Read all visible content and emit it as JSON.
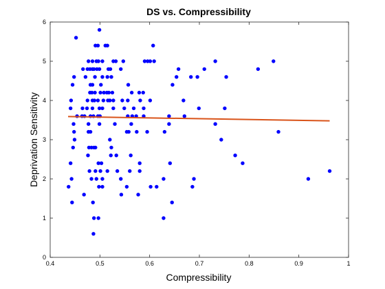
{
  "chart_data": {
    "type": "scatter",
    "title": "DS vs. Compressibility",
    "xlabel": "Compressibility",
    "ylabel": "Deprivation Sensitivity",
    "xlim": [
      0.4,
      1.0
    ],
    "ylim": [
      0,
      6
    ],
    "xticks": [
      "0.4",
      "0.5",
      "0.6",
      "0.7",
      "0.8",
      "0.9",
      "1"
    ],
    "yticks": [
      "0",
      "1",
      "2",
      "3",
      "4",
      "5",
      "6"
    ],
    "grid": false,
    "legend": "none",
    "point_color": "#0000ff",
    "line_color": "#d95319",
    "fit_line": {
      "x": [
        0.436,
        0.962
      ],
      "y": [
        3.59,
        3.48
      ]
    },
    "points": [
      [
        0.452,
        5.6
      ],
      [
        0.499,
        5.8
      ],
      [
        0.491,
        5.4
      ],
      [
        0.496,
        5.4
      ],
      [
        0.511,
        5.4
      ],
      [
        0.515,
        5.4
      ],
      [
        0.607,
        5.4
      ],
      [
        0.477,
        5.0
      ],
      [
        0.485,
        5.0
      ],
      [
        0.493,
        5.0
      ],
      [
        0.497,
        5.0
      ],
      [
        0.505,
        5.0
      ],
      [
        0.527,
        5.0
      ],
      [
        0.532,
        5.0
      ],
      [
        0.547,
        5.0
      ],
      [
        0.59,
        5.0
      ],
      [
        0.596,
        5.0
      ],
      [
        0.601,
        5.0
      ],
      [
        0.609,
        5.0
      ],
      [
        0.732,
        5.0
      ],
      [
        0.849,
        5.0
      ],
      [
        0.466,
        4.8
      ],
      [
        0.475,
        4.8
      ],
      [
        0.48,
        4.8
      ],
      [
        0.485,
        4.8
      ],
      [
        0.488,
        4.8
      ],
      [
        0.494,
        4.8
      ],
      [
        0.499,
        4.8
      ],
      [
        0.517,
        4.8
      ],
      [
        0.521,
        4.8
      ],
      [
        0.542,
        4.8
      ],
      [
        0.658,
        4.8
      ],
      [
        0.71,
        4.8
      ],
      [
        0.818,
        4.8
      ],
      [
        0.448,
        4.6
      ],
      [
        0.471,
        4.6
      ],
      [
        0.49,
        4.6
      ],
      [
        0.505,
        4.6
      ],
      [
        0.515,
        4.6
      ],
      [
        0.523,
        4.6
      ],
      [
        0.654,
        4.6
      ],
      [
        0.683,
        4.6
      ],
      [
        0.696,
        4.6
      ],
      [
        0.754,
        4.6
      ],
      [
        0.445,
        4.4
      ],
      [
        0.481,
        4.4
      ],
      [
        0.485,
        4.4
      ],
      [
        0.502,
        4.4
      ],
      [
        0.557,
        4.4
      ],
      [
        0.646,
        4.4
      ],
      [
        0.48,
        4.2
      ],
      [
        0.484,
        4.2
      ],
      [
        0.49,
        4.2
      ],
      [
        0.501,
        4.2
      ],
      [
        0.508,
        4.2
      ],
      [
        0.514,
        4.2
      ],
      [
        0.518,
        4.2
      ],
      [
        0.525,
        4.2
      ],
      [
        0.564,
        4.2
      ],
      [
        0.579,
        4.2
      ],
      [
        0.587,
        4.2
      ],
      [
        0.442,
        4.0
      ],
      [
        0.475,
        4.0
      ],
      [
        0.485,
        4.0
      ],
      [
        0.489,
        4.0
      ],
      [
        0.496,
        4.0
      ],
      [
        0.507,
        4.0
      ],
      [
        0.516,
        4.0
      ],
      [
        0.52,
        4.0
      ],
      [
        0.527,
        4.0
      ],
      [
        0.545,
        4.0
      ],
      [
        0.556,
        4.0
      ],
      [
        0.581,
        4.0
      ],
      [
        0.601,
        4.0
      ],
      [
        0.668,
        4.0
      ],
      [
        0.441,
        3.8
      ],
      [
        0.465,
        3.8
      ],
      [
        0.474,
        3.8
      ],
      [
        0.485,
        3.8
      ],
      [
        0.499,
        3.8
      ],
      [
        0.505,
        3.8
      ],
      [
        0.527,
        3.8
      ],
      [
        0.549,
        3.8
      ],
      [
        0.568,
        3.8
      ],
      [
        0.588,
        3.8
      ],
      [
        0.699,
        3.8
      ],
      [
        0.751,
        3.8
      ],
      [
        0.454,
        3.6
      ],
      [
        0.464,
        3.6
      ],
      [
        0.469,
        3.6
      ],
      [
        0.481,
        3.6
      ],
      [
        0.487,
        3.6
      ],
      [
        0.496,
        3.6
      ],
      [
        0.5,
        3.6
      ],
      [
        0.556,
        3.6
      ],
      [
        0.565,
        3.6
      ],
      [
        0.573,
        3.6
      ],
      [
        0.588,
        3.6
      ],
      [
        0.639,
        3.6
      ],
      [
        0.67,
        3.6
      ],
      [
        0.447,
        3.4
      ],
      [
        0.477,
        3.4
      ],
      [
        0.499,
        3.4
      ],
      [
        0.53,
        3.4
      ],
      [
        0.563,
        3.4
      ],
      [
        0.639,
        3.4
      ],
      [
        0.732,
        3.4
      ],
      [
        0.448,
        3.2
      ],
      [
        0.477,
        3.2
      ],
      [
        0.481,
        3.2
      ],
      [
        0.554,
        3.2
      ],
      [
        0.558,
        3.2
      ],
      [
        0.574,
        3.2
      ],
      [
        0.595,
        3.2
      ],
      [
        0.63,
        3.2
      ],
      [
        0.859,
        3.2
      ],
      [
        0.449,
        3.0
      ],
      [
        0.52,
        3.0
      ],
      [
        0.744,
        3.0
      ],
      [
        0.446,
        2.8
      ],
      [
        0.478,
        2.8
      ],
      [
        0.483,
        2.8
      ],
      [
        0.488,
        2.8
      ],
      [
        0.491,
        2.8
      ],
      [
        0.523,
        2.8
      ],
      [
        0.476,
        2.6
      ],
      [
        0.522,
        2.6
      ],
      [
        0.533,
        2.6
      ],
      [
        0.562,
        2.6
      ],
      [
        0.772,
        2.6
      ],
      [
        0.441,
        2.4
      ],
      [
        0.497,
        2.4
      ],
      [
        0.503,
        2.4
      ],
      [
        0.58,
        2.4
      ],
      [
        0.641,
        2.4
      ],
      [
        0.787,
        2.4
      ],
      [
        0.479,
        2.2
      ],
      [
        0.491,
        2.2
      ],
      [
        0.501,
        2.2
      ],
      [
        0.515,
        2.2
      ],
      [
        0.535,
        2.2
      ],
      [
        0.56,
        2.2
      ],
      [
        0.58,
        2.2
      ],
      [
        0.962,
        2.2
      ],
      [
        0.443,
        2.0
      ],
      [
        0.483,
        2.0
      ],
      [
        0.493,
        2.0
      ],
      [
        0.505,
        2.0
      ],
      [
        0.542,
        2.0
      ],
      [
        0.628,
        2.0
      ],
      [
        0.689,
        2.0
      ],
      [
        0.919,
        2.0
      ],
      [
        0.437,
        1.8
      ],
      [
        0.498,
        1.8
      ],
      [
        0.505,
        1.8
      ],
      [
        0.554,
        1.8
      ],
      [
        0.602,
        1.8
      ],
      [
        0.614,
        1.8
      ],
      [
        0.686,
        1.8
      ],
      [
        0.468,
        1.6
      ],
      [
        0.543,
        1.6
      ],
      [
        0.577,
        1.6
      ],
      [
        0.444,
        1.4
      ],
      [
        0.486,
        1.4
      ],
      [
        0.645,
        1.4
      ],
      [
        0.488,
        1.0
      ],
      [
        0.497,
        1.0
      ],
      [
        0.628,
        1.0
      ],
      [
        0.487,
        0.6
      ]
    ]
  }
}
